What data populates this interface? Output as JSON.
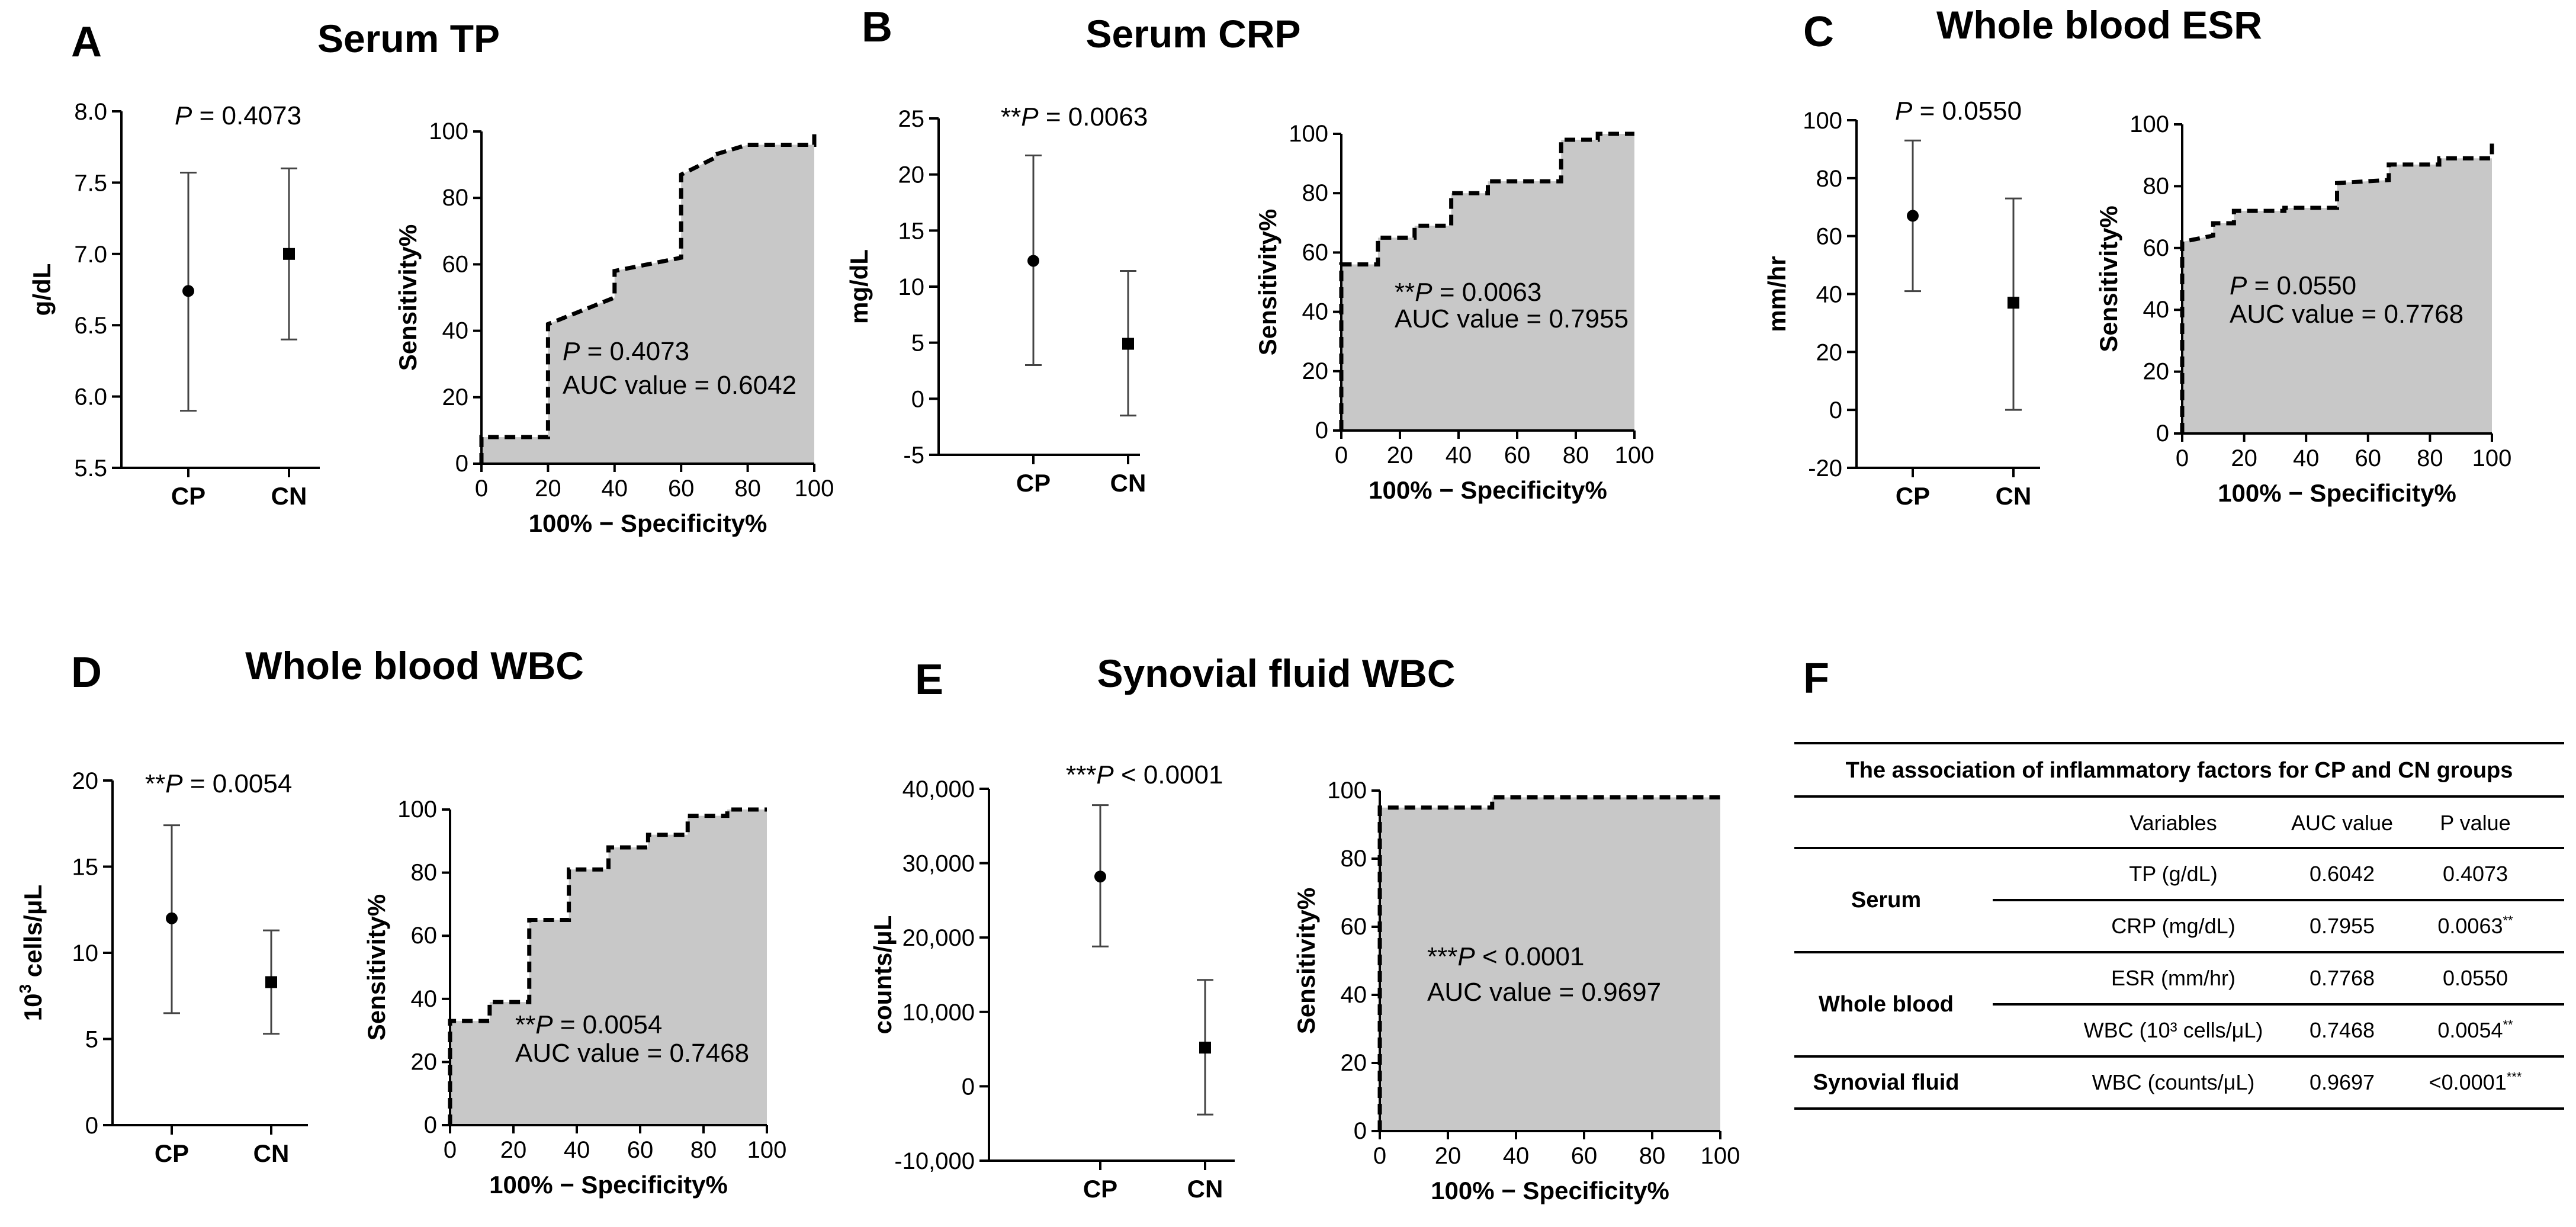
{
  "chart_data": [
    {
      "panel": "A",
      "title": "Serum TP",
      "dot_plot": {
        "type": "scatter",
        "ylabel": "g/dL",
        "categories": [
          "CP",
          "CN"
        ],
        "means": [
          6.74,
          7.0
        ],
        "err_low": [
          5.9,
          6.4
        ],
        "err_high": [
          7.57,
          7.6
        ],
        "ylim": [
          5.5,
          8.0
        ],
        "yticks": [
          "5.5",
          "6.0",
          "6.5",
          "7.0",
          "7.5",
          "8.0"
        ],
        "annotation": {
          "stars": "",
          "p_label": "P",
          "p_text": " = 0.4073"
        }
      },
      "roc": {
        "type": "area",
        "ylabel": "Sensitivity%",
        "xlabel": "100% − Specificity%",
        "xlim": [
          0,
          100
        ],
        "ylim": [
          0,
          100
        ],
        "xticks": [
          "0",
          "20",
          "40",
          "60",
          "80",
          "100"
        ],
        "yticks": [
          "0",
          "20",
          "40",
          "60",
          "80",
          "100"
        ],
        "x": [
          0,
          0,
          20,
          20,
          40,
          40,
          60,
          60,
          70,
          70,
          80,
          80,
          100,
          100
        ],
        "y": [
          0,
          8,
          8,
          42,
          50,
          58,
          62,
          87,
          92,
          93,
          96,
          96,
          96,
          100
        ],
        "annotation": {
          "stars": "",
          "p_label": "P",
          "p_text": " = 0.4073",
          "auc": "AUC value = 0.6042"
        }
      }
    },
    {
      "panel": "B",
      "title": "Serum CRP",
      "dot_plot": {
        "type": "scatter",
        "ylabel": "mg/dL",
        "categories": [
          "CP",
          "CN"
        ],
        "means": [
          12.3,
          4.9
        ],
        "err_low": [
          3.0,
          -1.5
        ],
        "err_high": [
          21.7,
          11.4
        ],
        "ylim": [
          -5,
          25
        ],
        "yticks": [
          "-5",
          "0",
          "5",
          "10",
          "15",
          "20",
          "25"
        ],
        "annotation": {
          "stars": "**",
          "p_label": "P",
          "p_text": " = 0.0063"
        }
      },
      "roc": {
        "type": "area",
        "ylabel": "Sensitivity%",
        "xlabel": "100% − Specificity%",
        "xlim": [
          0,
          100
        ],
        "ylim": [
          0,
          100
        ],
        "xticks": [
          "0",
          "20",
          "40",
          "60",
          "80",
          "100"
        ],
        "yticks": [
          "0",
          "20",
          "40",
          "60",
          "80",
          "100"
        ],
        "x": [
          0,
          0,
          12.5,
          12.5,
          25,
          25,
          37.5,
          37.5,
          50,
          50,
          75,
          75,
          87.5,
          87.5,
          100
        ],
        "y": [
          0,
          56,
          56,
          65,
          65,
          69,
          69,
          80,
          80,
          84,
          84,
          98,
          98,
          100,
          100
        ],
        "annotation": {
          "stars": "**",
          "p_label": "P",
          "p_text": " = 0.0063",
          "auc": "AUC value = 0.7955"
        }
      }
    },
    {
      "panel": "C",
      "title": "Whole blood ESR",
      "dot_plot": {
        "type": "scatter",
        "ylabel": "mm/hr",
        "categories": [
          "CP",
          "CN"
        ],
        "means": [
          67,
          37
        ],
        "err_low": [
          41,
          0
        ],
        "err_high": [
          93,
          73
        ],
        "ylim": [
          -20,
          100
        ],
        "yticks": [
          "-20",
          "0",
          "20",
          "40",
          "60",
          "80",
          "100"
        ],
        "annotation": {
          "stars": "",
          "p_label": "P",
          "p_text": " = 0.0550"
        }
      },
      "roc": {
        "type": "area",
        "ylabel": "Sensitivity%",
        "xlabel": "100% − Specificity%",
        "xlim": [
          0,
          100
        ],
        "ylim": [
          0,
          100
        ],
        "xticks": [
          "0",
          "20",
          "40",
          "60",
          "80",
          "100"
        ],
        "yticks": [
          "0",
          "20",
          "40",
          "60",
          "80",
          "100"
        ],
        "x": [
          0,
          0,
          10,
          10,
          16.7,
          16.7,
          33,
          33,
          50,
          50,
          66.7,
          66.7,
          83,
          83,
          100,
          100
        ],
        "y": [
          0,
          62,
          64,
          68,
          68,
          72,
          72,
          73,
          73,
          81,
          82,
          87,
          87,
          89,
          89,
          95
        ],
        "annotation": {
          "stars": "",
          "p_label": "P",
          "p_text": " = 0.0550",
          "auc": "AUC value = 0.7768"
        }
      }
    },
    {
      "panel": "D",
      "title": "Whole blood WBC",
      "dot_plot": {
        "type": "scatter",
        "ylabel": "10",
        "ylabel_sup": "3",
        "ylabel_rest": " cells/μL",
        "categories": [
          "CP",
          "CN"
        ],
        "means": [
          12.0,
          8.3
        ],
        "err_low": [
          6.5,
          5.3
        ],
        "err_high": [
          17.4,
          11.3
        ],
        "ylim": [
          0,
          20
        ],
        "yticks": [
          "0",
          "5",
          "10",
          "15",
          "20"
        ],
        "annotation": {
          "stars": "**",
          "p_label": "P",
          "p_text": " = 0.0054"
        }
      },
      "roc": {
        "type": "area",
        "ylabel": "Sensitivity%",
        "xlabel": "100% − Specificity%",
        "xlim": [
          0,
          100
        ],
        "ylim": [
          0,
          100
        ],
        "xticks": [
          "0",
          "20",
          "40",
          "60",
          "80",
          "100"
        ],
        "yticks": [
          "0",
          "20",
          "40",
          "60",
          "80",
          "100"
        ],
        "x": [
          0,
          0,
          12.5,
          12.5,
          25,
          25,
          37.5,
          37.5,
          50,
          50,
          62.5,
          62.5,
          75,
          75,
          87.5,
          87.5,
          100
        ],
        "y": [
          0,
          33,
          33,
          39,
          39,
          65,
          65,
          81,
          81,
          88,
          88,
          92,
          92,
          98,
          98,
          100,
          100
        ],
        "annotation": {
          "stars": "**",
          "p_label": "P",
          "p_text": " = 0.0054",
          "auc": "AUC value = 0.7468"
        }
      }
    },
    {
      "panel": "E",
      "title": "Synovial fluid WBC",
      "dot_plot": {
        "type": "scatter",
        "ylabel": "counts/μL",
        "categories": [
          "CP",
          "CN"
        ],
        "means": [
          28200,
          5200
        ],
        "err_low": [
          18800,
          -3800
        ],
        "err_high": [
          37800,
          14300
        ],
        "ylim": [
          -10000,
          40000
        ],
        "yticks": [
          "-10,000",
          "0",
          "10,000",
          "20,000",
          "30,000",
          "40,000"
        ],
        "annotation": {
          "stars": "***",
          "p_label": "P",
          "p_text": " < 0.0001"
        }
      },
      "roc": {
        "type": "area",
        "ylabel": "Sensitivity%",
        "xlabel": "100% − Specificity%",
        "xlim": [
          0,
          100
        ],
        "ylim": [
          0,
          100
        ],
        "xticks": [
          "0",
          "20",
          "40",
          "60",
          "80",
          "100"
        ],
        "yticks": [
          "0",
          "20",
          "40",
          "60",
          "80",
          "100"
        ],
        "x": [
          0,
          0,
          33,
          33,
          100
        ],
        "y": [
          0,
          95,
          95,
          98,
          98
        ],
        "annotation": {
          "stars": "***",
          "p_label": "P",
          "p_text": " < 0.0001",
          "auc": "AUC value = 0.9697"
        }
      }
    }
  ],
  "table": {
    "panel": "F",
    "title": "The association of inflammatory factors for CP and CN groups",
    "headers": [
      "Variables",
      "AUC value",
      "P value"
    ],
    "groups": [
      {
        "name": "Serum",
        "rows": [
          {
            "variable": "TP (g/dL)",
            "auc": "0.6042",
            "p": "0.4073",
            "stars": ""
          },
          {
            "variable": "CRP (mg/dL)",
            "auc": "0.7955",
            "p": "0.0063",
            "stars": "**"
          }
        ]
      },
      {
        "name": "Whole blood",
        "rows": [
          {
            "variable": "ESR (mm/hr)",
            "auc": "0.7768",
            "p": "0.0550",
            "stars": ""
          },
          {
            "variable": "WBC (10³ cells/μL)",
            "auc": "0.7468",
            "p": "0.0054",
            "stars": "**"
          }
        ]
      },
      {
        "name": "Synovial fluid",
        "rows": [
          {
            "variable": "WBC (counts/μL)",
            "auc": "0.9697",
            "p": "<0.0001",
            "stars": "***"
          }
        ]
      }
    ]
  }
}
